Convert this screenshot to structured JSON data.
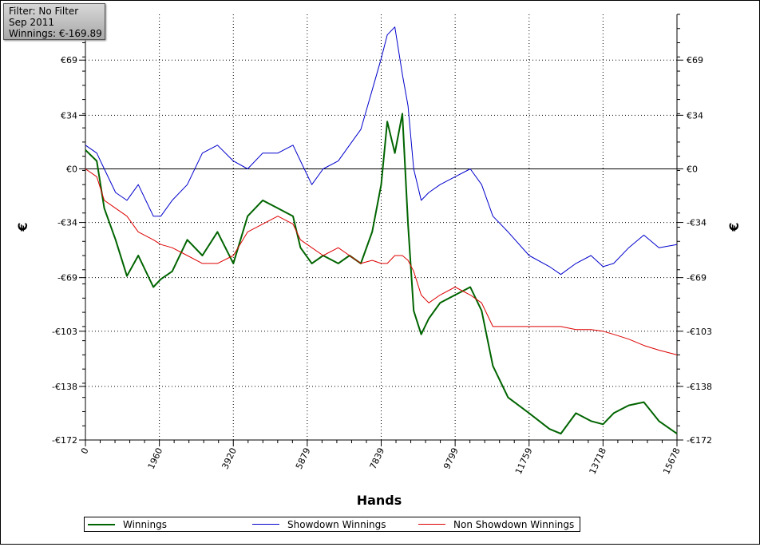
{
  "info": {
    "filter": "Filter: No Filter",
    "period": "Sep 2011",
    "winnings": "Winnings: €-169.89"
  },
  "chart_data": {
    "type": "line",
    "title": "",
    "xlabel": "Hands",
    "ylabel_left": "€",
    "ylabel_right": "€",
    "xlim": [
      0,
      15678
    ],
    "ylim": [
      -172,
      98
    ],
    "grid": true,
    "legend_position": "bottom",
    "x_ticks": [
      "0",
      "1960",
      "3920",
      "5879",
      "7839",
      "9799",
      "11759",
      "13718",
      "15678"
    ],
    "y_ticks": [
      {
        "value": 69,
        "label": "€69"
      },
      {
        "value": 34,
        "label": "€34"
      },
      {
        "value": 0,
        "label": "€0"
      },
      {
        "value": -34,
        "label": "-€34"
      },
      {
        "value": -69,
        "label": "-€69"
      },
      {
        "value": -103,
        "label": "-€103"
      },
      {
        "value": -138,
        "label": "-€138"
      },
      {
        "value": -172,
        "label": "-€172"
      }
    ],
    "series": [
      {
        "name": "Winnings",
        "color": "#006400",
        "x": [
          0,
          300,
          500,
          800,
          1100,
          1400,
          1800,
          2000,
          2300,
          2700,
          3100,
          3500,
          3920,
          4300,
          4700,
          5100,
          5500,
          5700,
          6000,
          6300,
          6700,
          7000,
          7300,
          7600,
          7839,
          8000,
          8200,
          8400,
          8550,
          8700,
          8900,
          9100,
          9400,
          9799,
          10200,
          10500,
          10800,
          11200,
          11759,
          12300,
          12600,
          13000,
          13400,
          13718,
          14000,
          14400,
          14800,
          15200,
          15678
        ],
        "y": [
          12,
          5,
          -25,
          -45,
          -68,
          -55,
          -75,
          -70,
          -65,
          -45,
          -55,
          -40,
          -60,
          -30,
          -20,
          -25,
          -30,
          -50,
          -60,
          -55,
          -60,
          -55,
          -60,
          -40,
          -10,
          30,
          10,
          35,
          -35,
          -90,
          -105,
          -95,
          -85,
          -80,
          -75,
          -90,
          -125,
          -145,
          -155,
          -165,
          -168,
          -155,
          -160,
          -162,
          -155,
          -150,
          -148,
          -160,
          -168
        ]
      },
      {
        "name": "Showdown Winnings",
        "color": "#0000cc",
        "x": [
          0,
          300,
          500,
          800,
          1100,
          1400,
          1800,
          2000,
          2300,
          2700,
          3100,
          3500,
          3920,
          4300,
          4700,
          5100,
          5500,
          5700,
          6000,
          6300,
          6700,
          7000,
          7300,
          7600,
          7839,
          8000,
          8200,
          8400,
          8550,
          8700,
          8900,
          9100,
          9400,
          9799,
          10200,
          10500,
          10800,
          11200,
          11759,
          12300,
          12600,
          13000,
          13400,
          13718,
          14000,
          14400,
          14800,
          15200,
          15678
        ],
        "y": [
          15,
          10,
          0,
          -15,
          -20,
          -10,
          -30,
          -30,
          -20,
          -10,
          10,
          15,
          5,
          0,
          10,
          10,
          15,
          5,
          -10,
          0,
          5,
          15,
          25,
          50,
          70,
          85,
          90,
          60,
          40,
          0,
          -20,
          -15,
          -10,
          -5,
          0,
          -10,
          -30,
          -40,
          -55,
          -62,
          -67,
          -60,
          -55,
          -62,
          -60,
          -50,
          -42,
          -50,
          -48
        ]
      },
      {
        "name": "Non Showdown Winnings",
        "color": "#dd0000",
        "x": [
          0,
          300,
          500,
          800,
          1100,
          1400,
          1800,
          2000,
          2300,
          2700,
          3100,
          3500,
          3920,
          4300,
          4700,
          5100,
          5500,
          5700,
          6000,
          6300,
          6700,
          7000,
          7300,
          7600,
          7839,
          8000,
          8200,
          8400,
          8550,
          8700,
          8900,
          9100,
          9400,
          9799,
          10200,
          10500,
          10800,
          11200,
          11759,
          12300,
          12600,
          13000,
          13400,
          13718,
          14000,
          14400,
          14800,
          15200,
          15678
        ],
        "y": [
          0,
          -5,
          -20,
          -25,
          -30,
          -40,
          -45,
          -48,
          -50,
          -55,
          -60,
          -60,
          -55,
          -40,
          -35,
          -30,
          -35,
          -45,
          -50,
          -55,
          -50,
          -55,
          -60,
          -58,
          -60,
          -60,
          -55,
          -55,
          -58,
          -65,
          -80,
          -85,
          -80,
          -75,
          -80,
          -85,
          -100,
          -100,
          -100,
          -100,
          -100,
          -102,
          -102,
          -103,
          -105,
          -108,
          -112,
          -115,
          -118
        ]
      }
    ]
  }
}
